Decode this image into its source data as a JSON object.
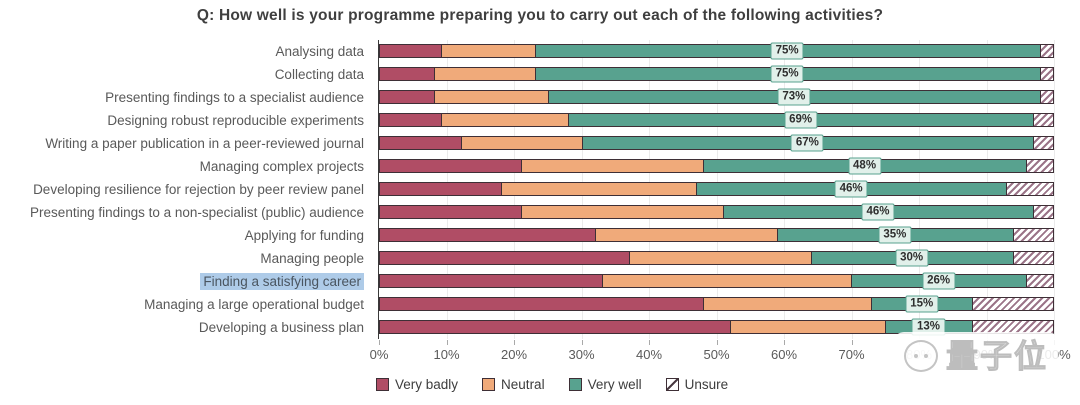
{
  "title": "Q: How well is your programme preparing you to carry out each of the following activities?",
  "chart_data": {
    "type": "bar",
    "orientation": "horizontal",
    "stacked": true,
    "title": "Q: How well is your programme preparing you to carry out each of the following activities?",
    "xlabel": "",
    "ylabel": "",
    "xlim": [
      0,
      100
    ],
    "grid": true,
    "legend_position": "bottom",
    "categories": [
      "Analysing data",
      "Collecting data",
      "Presenting findings to a specialist audience",
      "Designing robust reproducible experiments",
      "Writing a paper publication in a peer-reviewed journal",
      "Managing complex projects",
      "Developing resilience for rejection by peer review panel",
      "Presenting findings to a non-specialist (public) audience",
      "Applying for funding",
      "Managing people",
      "Finding a satisfying career",
      "Managing a large operational budget",
      "Developing a business plan"
    ],
    "highlighted_category": "Finding a satisfying career",
    "series": [
      {
        "name": "Very badly",
        "color": "#b04d65",
        "pattern": "solid",
        "values": [
          9,
          8,
          8,
          9,
          12,
          21,
          18,
          21,
          32,
          37,
          33,
          48,
          52
        ]
      },
      {
        "name": "Neutral",
        "color": "#f0aa7a",
        "pattern": "solid",
        "values": [
          14,
          15,
          17,
          19,
          18,
          27,
          29,
          30,
          27,
          27,
          37,
          25,
          23
        ]
      },
      {
        "name": "Very well",
        "color": "#58a28f",
        "pattern": "solid",
        "values": [
          75,
          75,
          73,
          69,
          67,
          48,
          46,
          46,
          35,
          30,
          26,
          15,
          13
        ]
      },
      {
        "name": "Unsure",
        "color": "#9b7488",
        "pattern": "diagonal-hatch",
        "values": [
          2,
          2,
          2,
          3,
          3,
          4,
          7,
          3,
          6,
          6,
          4,
          12,
          12
        ]
      }
    ],
    "bar_labels": [
      "75%",
      "75%",
      "73%",
      "69%",
      "67%",
      "48%",
      "46%",
      "46%",
      "35%",
      "30%",
      "26%",
      "15%",
      "13%"
    ],
    "x_ticks": [
      "0%",
      "10%",
      "20%",
      "30%",
      "40%",
      "50%",
      "60%",
      "70%",
      "80%",
      "90%",
      "100%"
    ]
  },
  "legend": {
    "items": [
      "Very badly",
      "Neutral",
      "Very well",
      "Unsure"
    ]
  },
  "watermark": {
    "text": "量子位"
  },
  "colors": {
    "very_badly": "#b04d65",
    "neutral": "#f0aa7a",
    "very_well": "#58a28f",
    "unsure_hatch": "#9b7488",
    "bar_border": "#3e2f36",
    "label_box_bg": "#e1f0ea",
    "label_box_border": "#58a28f",
    "highlight_bg": "#aecbe8",
    "grid": "#ebebeb"
  }
}
